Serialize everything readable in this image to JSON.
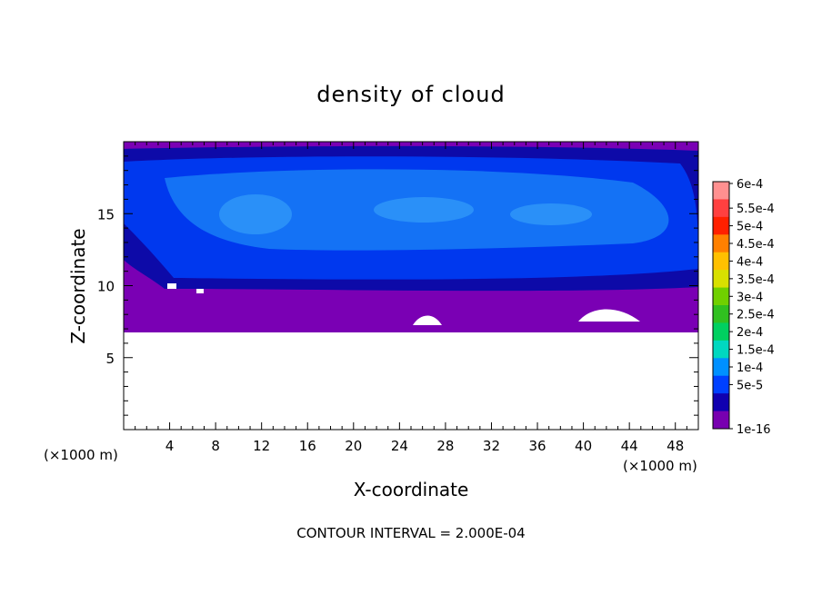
{
  "chart_data": {
    "type": "heatmap",
    "title": "density of cloud",
    "xlabel": "X-coordinate",
    "ylabel": "Z-coordinate",
    "x_unit": "(×1000 m)",
    "y_unit": "(×1000 m)",
    "xlim": [
      0,
      50
    ],
    "ylim": [
      0,
      20
    ],
    "x_ticks": [
      "4",
      "8",
      "12",
      "16",
      "20",
      "24",
      "28",
      "32",
      "36",
      "40",
      "44",
      "48"
    ],
    "x_tick_values": [
      4,
      8,
      12,
      16,
      20,
      24,
      28,
      32,
      36,
      40,
      44,
      48
    ],
    "y_ticks": [
      "5",
      "10",
      "15"
    ],
    "y_tick_values": [
      5,
      10,
      15
    ],
    "colorbar": {
      "labels": [
        "6e-4",
        "5.5e-4",
        "5e-4",
        "4.5e-4",
        "4e-4",
        "3.5e-4",
        "3e-4",
        "2.5e-4",
        "2e-4",
        "1.5e-4",
        "1e-4",
        "5e-5",
        "1e-16"
      ],
      "colors": [
        "#ff9090",
        "#ff4040",
        "#ff2000",
        "#ff8000",
        "#ffc000",
        "#d8e000",
        "#70d000",
        "#30c020",
        "#00d060",
        "#00d8c0",
        "#0090ff",
        "#0040ff",
        "#1000b0",
        "#7800b0"
      ]
    },
    "field_description": "Cloud density field. Upper region z≈10–19 km mostly 1e-4 to 1.5e-4 (blue), bordered by 5e-5 (dark blue) edges; z≈7–10 km mostly near 1e-16 (purple); below z≈6.5 km no cloud (white).",
    "contour_interval_text": "CONTOUR INTERVAL = 2.000E-04"
  },
  "colors": {
    "purple": "#7a00b4",
    "dark_blue": "#0d0aa8",
    "blue": "#0038ee",
    "light_blue": "#1472f5",
    "lighter_blue": "#2a90f8"
  }
}
